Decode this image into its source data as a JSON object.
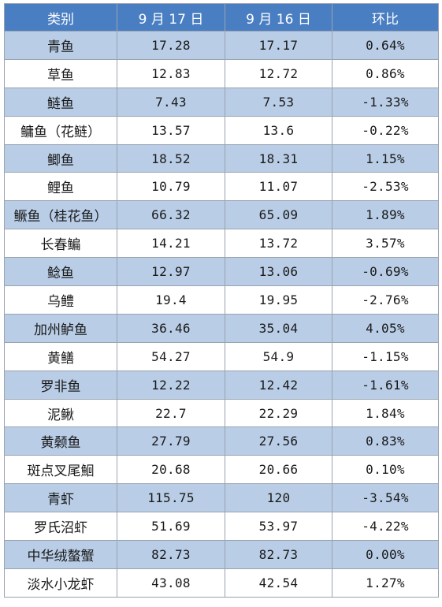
{
  "table": {
    "headers": [
      "类别",
      "9 月 17 日",
      "9 月 16 日",
      "环比"
    ],
    "rows": [
      [
        "青鱼",
        "17.28",
        "17.17",
        "0.64%"
      ],
      [
        "草鱼",
        "12.83",
        "12.72",
        "0.86%"
      ],
      [
        "鲢鱼",
        "7.43",
        "7.53",
        "-1.33%"
      ],
      [
        "鳙鱼（花鲢）",
        "13.57",
        "13.6",
        "-0.22%"
      ],
      [
        "鲫鱼",
        "18.52",
        "18.31",
        "1.15%"
      ],
      [
        "鲤鱼",
        "10.79",
        "11.07",
        "-2.53%"
      ],
      [
        "鳜鱼（桂花鱼）",
        "66.32",
        "65.09",
        "1.89%"
      ],
      [
        "长春鳊",
        "14.21",
        "13.72",
        "3.57%"
      ],
      [
        "鲶鱼",
        "12.97",
        "13.06",
        "-0.69%"
      ],
      [
        "乌鳢",
        "19.4",
        "19.95",
        "-2.76%"
      ],
      [
        "加州鲈鱼",
        "36.46",
        "35.04",
        "4.05%"
      ],
      [
        "黄鳝",
        "54.27",
        "54.9",
        "-1.15%"
      ],
      [
        "罗非鱼",
        "12.22",
        "12.42",
        "-1.61%"
      ],
      [
        "泥鳅",
        "22.7",
        "22.29",
        "1.84%"
      ],
      [
        "黄颡鱼",
        "27.79",
        "27.56",
        "0.83%"
      ],
      [
        "斑点叉尾鮰",
        "20.68",
        "20.66",
        "0.10%"
      ],
      [
        "青虾",
        "115.75",
        "120",
        "-3.54%"
      ],
      [
        "罗氏沼虾",
        "51.69",
        "53.97",
        "-4.22%"
      ],
      [
        "中华绒螯蟹",
        "82.73",
        "82.73",
        "0.00%"
      ],
      [
        "淡水小龙虾",
        "43.08",
        "42.54",
        "1.27%"
      ]
    ]
  },
  "colors": {
    "header_bg": "#4a7ec2",
    "band_bg": "#b9cde6",
    "plain_bg": "#ffffff",
    "border": "#9aa3b0"
  }
}
